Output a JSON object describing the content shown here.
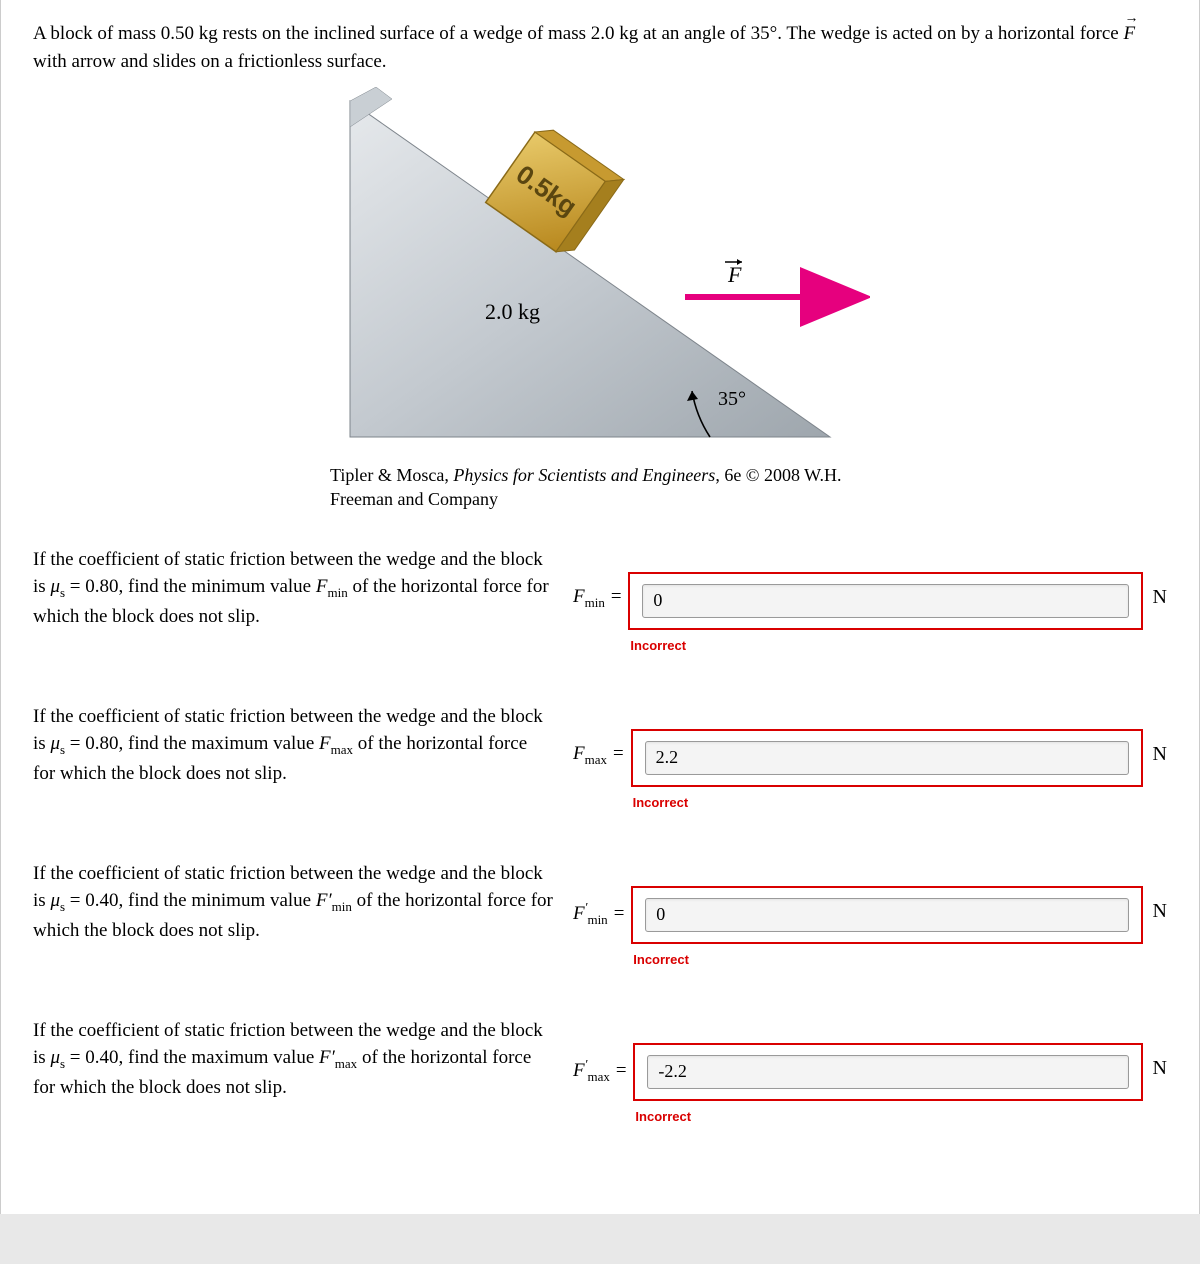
{
  "problem": {
    "intro_a": "A block of mass 0.50 kg rests on the inclined surface of a wedge of mass 2.0 kg at an angle of 35°. The wedge is acted on by a horizontal force ",
    "intro_b": " with arrow and slides on a frictionless surface."
  },
  "figure": {
    "block_label": "0.5kg",
    "wedge_label": "2.0 kg",
    "force_label": "F",
    "angle_label": "35°",
    "caption_pre": "Tipler & Mosca, ",
    "caption_italic": "Physics for Scientists and Engineers",
    "caption_post": ", 6e © 2008 W.H. Freeman and Company",
    "colors": {
      "wedge_light": "#d7dbdf",
      "wedge_dark": "#9ea6ad",
      "block_fill": "#d4a93a",
      "block_edge": "#a27d22",
      "arrow": "#e6007e",
      "angle_arc": "#000000"
    }
  },
  "questions": [
    {
      "text_pre": "If the coefficient of static friction between the wedge and the block is ",
      "mu_val": "0.80",
      "text_mid": ", find the minimum value ",
      "var_html": "F<sub>min</sub>",
      "text_post": " of the horizontal force for which the block does not slip.",
      "label_html": "F<span class='sub'>min</span> =",
      "value": "0",
      "unit": "N",
      "feedback": "Incorrect"
    },
    {
      "text_pre": "If the coefficient of static friction between the wedge and the block is ",
      "mu_val": "0.80",
      "text_mid": ", find the maximum value ",
      "var_html": "F<sub>max</sub>",
      "text_post": " of the horizontal force for which the block does not slip.",
      "label_html": "F<span class='sub'>max</span> =",
      "value": "2.2",
      "unit": "N",
      "feedback": "Incorrect"
    },
    {
      "text_pre": "If the coefficient of static friction between the wedge and the block is ",
      "mu_val": "0.40",
      "text_mid": ", find the minimum value ",
      "var_html": "F′<sub>min</sub>",
      "text_post": " of the horizontal force for which the block does not slip.",
      "label_html": "F<span class='sup'>′</span><span class='sub'>min</span> =",
      "value": "0",
      "unit": "N",
      "feedback": "Incorrect"
    },
    {
      "text_pre": "If the coefficient of static friction between the wedge and the block is ",
      "mu_val": "0.40",
      "text_mid": ", find the maximum value ",
      "var_html": "F′<sub>max</sub>",
      "text_post": " of the horizontal force for which the block does not slip.",
      "label_html": "F<span class='sup'>′</span><span class='sub'>max</span> =",
      "value": "-2.2",
      "unit": "N",
      "feedback": "Incorrect"
    }
  ]
}
